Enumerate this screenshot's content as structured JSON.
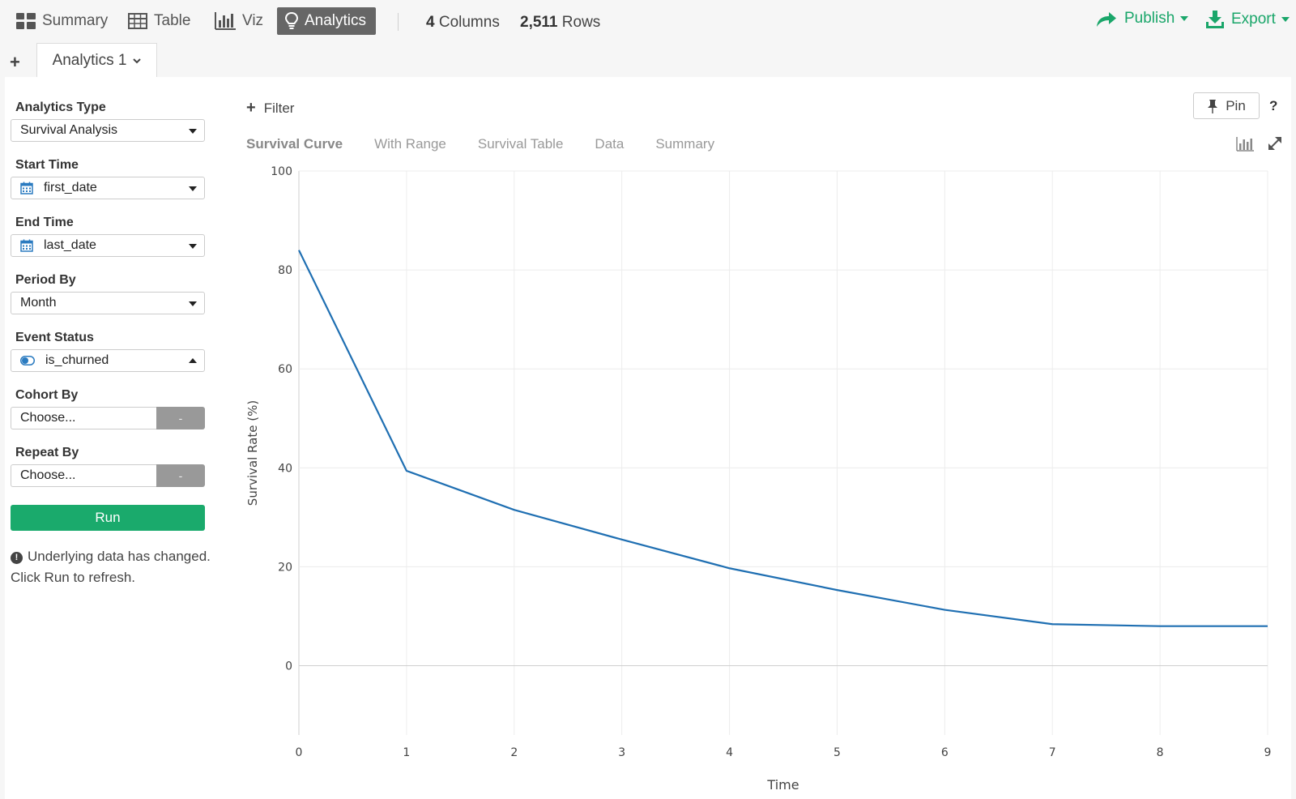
{
  "nav": {
    "summary": "Summary",
    "table": "Table",
    "viz": "Viz",
    "analytics": "Analytics"
  },
  "stats": {
    "columns_value": "4",
    "columns_label": "Columns",
    "rows_value": "2,511",
    "rows_label": "Rows"
  },
  "actions": {
    "publish": "Publish",
    "export": "Export"
  },
  "sheet_tab": {
    "add": "+",
    "label": "Analytics 1"
  },
  "sidebar": {
    "analytics_type": {
      "label": "Analytics Type",
      "value": "Survival Analysis"
    },
    "start_time": {
      "label": "Start Time",
      "value": "first_date",
      "icon": "calendar-icon"
    },
    "end_time": {
      "label": "End Time",
      "value": "last_date",
      "icon": "calendar-icon"
    },
    "period_by": {
      "label": "Period By",
      "value": "Month"
    },
    "event_status": {
      "label": "Event Status",
      "value": "is_churned",
      "icon": "toggle-icon"
    },
    "cohort_by": {
      "label": "Cohort By",
      "value": "Choose...",
      "button": "-"
    },
    "repeat_by": {
      "label": "Repeat By",
      "value": "Choose...",
      "button": "-"
    },
    "run": "Run",
    "notice": "Underlying data has changed. Click Run to refresh."
  },
  "content": {
    "filter": "Filter",
    "pin": "Pin",
    "help": "?",
    "tabs": [
      "Survival Curve",
      "With Range",
      "Survival Table",
      "Data",
      "Summary"
    ],
    "active_tab": "Survival Curve"
  },
  "colors": {
    "accent_green": "#1aa66a",
    "line_blue": "#1f6fb2",
    "active_nav_bg": "#666666"
  },
  "chart_data": {
    "type": "line",
    "title": "",
    "xlabel": "Time",
    "ylabel": "Survival Rate (%)",
    "x": [
      0,
      1,
      2,
      3,
      4,
      5,
      6,
      7,
      8,
      9
    ],
    "x_ticks": [
      "0",
      "1",
      "2",
      "3",
      "4",
      "5",
      "6",
      "7",
      "8",
      "9"
    ],
    "y_ticks": [
      "0",
      "20",
      "40",
      "60",
      "80",
      "100"
    ],
    "xlim": [
      0,
      9
    ],
    "ylim": [
      -14,
      100
    ],
    "grid": true,
    "series": [
      {
        "values": [
          84,
          39.4,
          31.5,
          25.5,
          19.7,
          15.3,
          11.3,
          8.4,
          8.0,
          8.0
        ]
      }
    ]
  }
}
